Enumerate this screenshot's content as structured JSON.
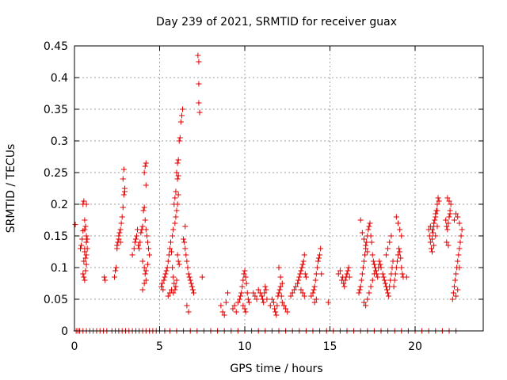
{
  "chart_data": {
    "type": "scatter",
    "title": "Day 239 of 2021, SRMTID for receiver guax",
    "xlabel": "GPS time / hours",
    "ylabel": "SRMTID / TECUs",
    "xlim": [
      0,
      24
    ],
    "ylim": [
      0,
      0.45
    ],
    "xticks": [
      0,
      5,
      10,
      15,
      20
    ],
    "xtick_labels": [
      "0",
      "5",
      "10",
      "15",
      "20"
    ],
    "yticks": [
      0,
      0.05,
      0.1,
      0.15,
      0.2,
      0.25,
      0.3,
      0.35,
      0.4,
      0.45
    ],
    "ytick_labels": [
      "0",
      "0.05",
      "0.1",
      "0.15",
      "0.2",
      "0.25",
      "0.3",
      "0.35",
      "0.4",
      "0.45"
    ],
    "grid": true,
    "marker": "+",
    "series_color": "#e00000",
    "series": [
      {
        "name": "SRMTID",
        "x": [
          0.05,
          0.35,
          0.4,
          0.45,
          0.5,
          0.5,
          0.55,
          0.6,
          0.6,
          0.65,
          0.7,
          0.7,
          0.75,
          0.5,
          0.55,
          0.6,
          0.65,
          0.7,
          0.55,
          0.6,
          0.6,
          0.65,
          0.7,
          0.7,
          0.75,
          1.75,
          1.8,
          2.35,
          2.4,
          2.45,
          2.5,
          2.55,
          2.6,
          2.6,
          2.65,
          2.7,
          2.75,
          2.8,
          2.85,
          2.9,
          2.95,
          2.5,
          2.7,
          2.85,
          2.9,
          2.95,
          3.4,
          3.5,
          3.55,
          3.6,
          3.65,
          3.7,
          3.75,
          3.8,
          3.85,
          3.9,
          3.95,
          4.0,
          4.05,
          4.1,
          4.15,
          4.2,
          4.25,
          4.3,
          4.35,
          4.4,
          4.0,
          4.1,
          4.15,
          4.2,
          4.2,
          4.1,
          4.15,
          4.2,
          4.0,
          4.1,
          4.2,
          4.3,
          5.1,
          5.15,
          5.2,
          5.25,
          5.3,
          5.35,
          5.4,
          5.45,
          5.5,
          5.55,
          5.6,
          5.65,
          5.7,
          5.75,
          5.8,
          5.85,
          5.9,
          5.95,
          6.0,
          5.5,
          5.6,
          5.7,
          5.8,
          5.75,
          5.8,
          5.85,
          5.9,
          5.95,
          6.0,
          6.05,
          6.1,
          6.15,
          6.2,
          6.25,
          6.3,
          6.35,
          5.9,
          5.95,
          6.0,
          6.05,
          6.1,
          6.05,
          6.1,
          6.1,
          6.15,
          6.05,
          6.4,
          6.45,
          6.5,
          6.55,
          6.6,
          6.65,
          6.7,
          6.75,
          6.8,
          6.85,
          6.9,
          6.95,
          7.0,
          6.5,
          6.6,
          6.7,
          7.25,
          7.3,
          7.3,
          7.35,
          7.3,
          7.5,
          8.6,
          8.7,
          8.8,
          8.9,
          9.0,
          9.3,
          9.4,
          9.5,
          9.6,
          9.7,
          9.75,
          9.8,
          9.85,
          9.9,
          9.95,
          10.0,
          10.05,
          10.1,
          10.15,
          10.2,
          10.25,
          9.9,
          10.0,
          10.05,
          10.5,
          10.6,
          10.7,
          10.8,
          10.9,
          11.0,
          11.05,
          11.1,
          11.15,
          11.2,
          11.25,
          11.3,
          11.5,
          11.6,
          11.7,
          11.75,
          11.8,
          11.85,
          11.9,
          11.95,
          12.0,
          12.05,
          12.1,
          12.15,
          12.2,
          12.3,
          12.4,
          12.5,
          12.0,
          12.1,
          12.2,
          12.7,
          12.8,
          12.9,
          13.0,
          13.1,
          13.15,
          13.2,
          13.25,
          13.3,
          13.35,
          13.4,
          13.45,
          13.5,
          13.55,
          13.6,
          13.3,
          13.4,
          13.5,
          13.9,
          14.0,
          14.05,
          14.1,
          14.15,
          14.2,
          14.25,
          14.3,
          14.35,
          14.4,
          14.45,
          14.5,
          14.1,
          14.2,
          14.9,
          15.5,
          15.6,
          15.7,
          15.75,
          15.8,
          15.85,
          15.9,
          15.95,
          16.0,
          16.05,
          16.1,
          16.15,
          16.7,
          16.75,
          16.8,
          16.85,
          16.9,
          16.95,
          17.0,
          17.05,
          17.1,
          17.15,
          17.2,
          17.25,
          17.3,
          17.35,
          17.4,
          17.45,
          17.5,
          17.55,
          17.6,
          17.65,
          17.7,
          17.75,
          17.8,
          17.85,
          17.9,
          17.95,
          18.0,
          17.0,
          17.1,
          17.2,
          17.3,
          17.4,
          17.5,
          17.6,
          16.8,
          16.9,
          17.0,
          17.1,
          17.2,
          18.1,
          18.15,
          18.2,
          18.25,
          18.3,
          18.35,
          18.4,
          18.45,
          18.5,
          18.55,
          18.6,
          18.65,
          18.7,
          18.3,
          18.4,
          18.5,
          18.6,
          18.75,
          18.8,
          18.85,
          18.9,
          18.95,
          19.0,
          19.05,
          19.1,
          19.15,
          19.2,
          19.25,
          19.3,
          18.9,
          19.0,
          19.1,
          19.2,
          19.5,
          20.8,
          20.85,
          20.9,
          20.95,
          21.0,
          21.05,
          21.1,
          21.15,
          21.2,
          21.25,
          21.3,
          21.35,
          21.4,
          21.0,
          21.1,
          21.2,
          21.3,
          20.9,
          21.0,
          21.1,
          21.2,
          21.3,
          21.8,
          21.85,
          21.9,
          21.95,
          22.0,
          22.05,
          22.1,
          21.9,
          22.0,
          22.05,
          21.85,
          21.95,
          22.2,
          22.25,
          22.3,
          22.35,
          22.4,
          22.45,
          22.5,
          22.55,
          22.6,
          22.65,
          22.7,
          22.75,
          22.3,
          22.4,
          22.5,
          22.6,
          22.4,
          22.5,
          22.6,
          0.1,
          0.2,
          0.3,
          0.5,
          0.7,
          0.9,
          1.1,
          1.3,
          1.5,
          1.7,
          1.9,
          2.2,
          2.4,
          2.6,
          2.8,
          3.0,
          3.2,
          3.4,
          3.6,
          3.8,
          4.0,
          4.2,
          4.4,
          4.6,
          4.8,
          5.0,
          5.3,
          5.6,
          6.0,
          6.4,
          6.8,
          7.2,
          7.6,
          8.0,
          8.4,
          8.8,
          9.2,
          9.6,
          10.0,
          10.4,
          10.8,
          11.2,
          11.6,
          12.0,
          12.4,
          12.8,
          13.2,
          13.6,
          14.0,
          14.4,
          14.8,
          15.2,
          15.6,
          16.0,
          16.4,
          16.8,
          17.2,
          17.6,
          18.0,
          18.4,
          18.8,
          19.2,
          19.6,
          20.0,
          20.4,
          20.8,
          21.2,
          21.6,
          22.0,
          22.4
        ],
        "y": [
          0.168,
          0.13,
          0.135,
          0.145,
          0.158,
          0.2,
          0.205,
          0.175,
          0.16,
          0.165,
          0.15,
          0.14,
          0.145,
          0.09,
          0.085,
          0.08,
          0.095,
          0.12,
          0.11,
          0.125,
          0.13,
          0.115,
          0.105,
          0.2,
          0.13,
          0.085,
          0.08,
          0.085,
          0.095,
          0.1,
          0.13,
          0.14,
          0.145,
          0.15,
          0.155,
          0.16,
          0.17,
          0.18,
          0.195,
          0.215,
          0.225,
          0.135,
          0.14,
          0.24,
          0.255,
          0.22,
          0.12,
          0.13,
          0.14,
          0.145,
          0.15,
          0.16,
          0.135,
          0.13,
          0.14,
          0.155,
          0.16,
          0.165,
          0.19,
          0.195,
          0.175,
          0.16,
          0.15,
          0.14,
          0.13,
          0.12,
          0.11,
          0.1,
          0.09,
          0.08,
          0.23,
          0.25,
          0.26,
          0.265,
          0.065,
          0.075,
          0.095,
          0.105,
          0.07,
          0.075,
          0.065,
          0.08,
          0.085,
          0.09,
          0.095,
          0.1,
          0.11,
          0.12,
          0.13,
          0.14,
          0.125,
          0.1,
          0.085,
          0.075,
          0.065,
          0.07,
          0.08,
          0.055,
          0.06,
          0.065,
          0.06,
          0.15,
          0.16,
          0.2,
          0.21,
          0.22,
          0.25,
          0.265,
          0.27,
          0.3,
          0.305,
          0.33,
          0.34,
          0.35,
          0.17,
          0.18,
          0.19,
          0.2,
          0.215,
          0.24,
          0.245,
          0.11,
          0.105,
          0.12,
          0.145,
          0.14,
          0.13,
          0.12,
          0.11,
          0.1,
          0.09,
          0.085,
          0.08,
          0.075,
          0.07,
          0.065,
          0.06,
          0.165,
          0.04,
          0.03,
          0.435,
          0.425,
          0.39,
          0.345,
          0.36,
          0.085,
          0.04,
          0.03,
          0.025,
          0.045,
          0.06,
          0.035,
          0.04,
          0.03,
          0.045,
          0.05,
          0.055,
          0.06,
          0.07,
          0.08,
          0.09,
          0.095,
          0.085,
          0.075,
          0.06,
          0.05,
          0.045,
          0.04,
          0.035,
          0.03,
          0.06,
          0.055,
          0.05,
          0.065,
          0.06,
          0.055,
          0.05,
          0.045,
          0.06,
          0.07,
          0.065,
          0.05,
          0.04,
          0.05,
          0.045,
          0.035,
          0.03,
          0.025,
          0.04,
          0.055,
          0.06,
          0.065,
          0.07,
          0.055,
          0.045,
          0.04,
          0.035,
          0.03,
          0.1,
          0.085,
          0.075,
          0.055,
          0.06,
          0.065,
          0.07,
          0.075,
          0.08,
          0.085,
          0.09,
          0.095,
          0.1,
          0.105,
          0.11,
          0.12,
          0.09,
          0.085,
          0.065,
          0.06,
          0.055,
          0.055,
          0.06,
          0.065,
          0.07,
          0.08,
          0.09,
          0.1,
          0.11,
          0.115,
          0.12,
          0.13,
          0.09,
          0.045,
          0.05,
          0.045,
          0.09,
          0.095,
          0.08,
          0.085,
          0.075,
          0.07,
          0.08,
          0.085,
          0.09,
          0.095,
          0.1,
          0.085,
          0.06,
          0.065,
          0.07,
          0.08,
          0.09,
          0.1,
          0.11,
          0.12,
          0.13,
          0.14,
          0.15,
          0.16,
          0.165,
          0.17,
          0.15,
          0.14,
          0.12,
          0.11,
          0.105,
          0.1,
          0.095,
          0.09,
          0.085,
          0.1,
          0.11,
          0.105,
          0.1,
          0.045,
          0.04,
          0.05,
          0.06,
          0.07,
          0.08,
          0.09,
          0.175,
          0.155,
          0.145,
          0.135,
          0.125,
          0.09,
          0.085,
          0.08,
          0.075,
          0.07,
          0.065,
          0.06,
          0.055,
          0.07,
          0.08,
          0.09,
          0.1,
          0.11,
          0.12,
          0.13,
          0.14,
          0.15,
          0.07,
          0.08,
          0.09,
          0.1,
          0.11,
          0.12,
          0.13,
          0.125,
          0.115,
          0.1,
          0.09,
          0.085,
          0.18,
          0.17,
          0.16,
          0.15,
          0.085,
          0.16,
          0.15,
          0.14,
          0.13,
          0.145,
          0.155,
          0.165,
          0.175,
          0.18,
          0.19,
          0.2,
          0.21,
          0.205,
          0.125,
          0.135,
          0.15,
          0.165,
          0.165,
          0.16,
          0.17,
          0.185,
          0.19,
          0.175,
          0.165,
          0.16,
          0.17,
          0.18,
          0.19,
          0.2,
          0.21,
          0.205,
          0.185,
          0.14,
          0.135,
          0.05,
          0.06,
          0.07,
          0.08,
          0.09,
          0.1,
          0.11,
          0.12,
          0.13,
          0.14,
          0.15,
          0.16,
          0.175,
          0.185,
          0.18,
          0.17,
          0.055,
          0.065,
          0.1,
          0.0,
          0.0,
          0.0,
          0.0,
          0.0,
          0.0,
          0.0,
          0.0,
          0.0,
          0.0,
          0.0,
          0.0,
          0.0,
          0.0,
          0.0,
          0.0,
          0.0,
          0.0,
          0.0,
          0.0,
          0.0,
          0.0,
          0.0,
          0.0,
          0.0,
          0.0,
          0.0,
          0.0,
          0.0,
          0.0,
          0.0,
          0.0,
          0.0,
          0.0,
          0.0,
          0.0,
          0.0,
          0.0,
          0.0,
          0.0,
          0.0,
          0.0,
          0.0,
          0.0,
          0.0,
          0.0,
          0.0,
          0.0,
          0.0,
          0.0,
          0.0,
          0.0,
          0.0,
          0.0,
          0.0,
          0.0,
          0.0,
          0.0,
          0.0,
          0.0,
          0.0,
          0.0,
          0.0,
          0.0,
          0.0,
          0.0,
          0.0,
          0.0,
          0.0,
          0.0
        ]
      }
    ]
  }
}
